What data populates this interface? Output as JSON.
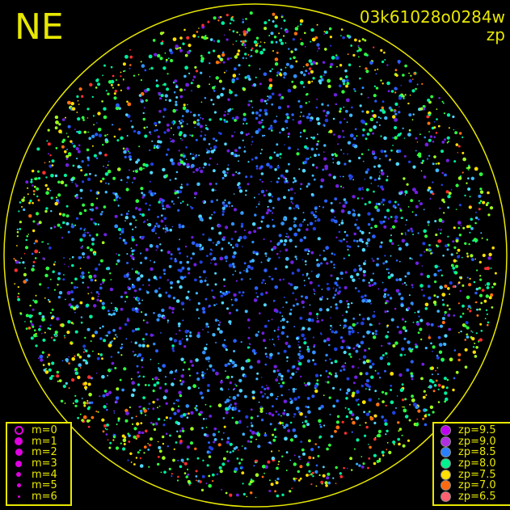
{
  "header": {
    "direction": "NE",
    "frame_id": "03k61028o0284w",
    "quantity": "zp"
  },
  "chart_data": {
    "type": "scatter",
    "title": "03k61028o0284w",
    "subtitle": "zp",
    "projection": "all-sky circular field",
    "colors": {
      "frame": "#e8e800",
      "background": "#000000"
    },
    "size_legend": [
      {
        "label": "m=0",
        "style": "open"
      },
      {
        "label": "m=1"
      },
      {
        "label": "m=2"
      },
      {
        "label": "m=3"
      },
      {
        "label": "m=4"
      },
      {
        "label": "m=5"
      },
      {
        "label": "m=6"
      }
    ],
    "color_legend": [
      {
        "label": "zp=9.5",
        "value": 9.5,
        "color": "#c000f0"
      },
      {
        "label": "zp=9.0",
        "value": 9.0,
        "color": "#b030e0"
      },
      {
        "label": "zp=8.5",
        "value": 8.5,
        "color": "#2a80ff"
      },
      {
        "label": "zp=8.0",
        "value": 8.0,
        "color": "#00f090"
      },
      {
        "label": "zp=7.5",
        "value": 7.5,
        "color": "#ffe000"
      },
      {
        "label": "zp=7.0",
        "value": 7.0,
        "color": "#ff6a10"
      },
      {
        "label": "zp=6.5",
        "value": 6.5,
        "color": "#ff6070"
      }
    ],
    "legend_placement": {
      "size": "bottom-left",
      "color": "bottom-right"
    }
  }
}
